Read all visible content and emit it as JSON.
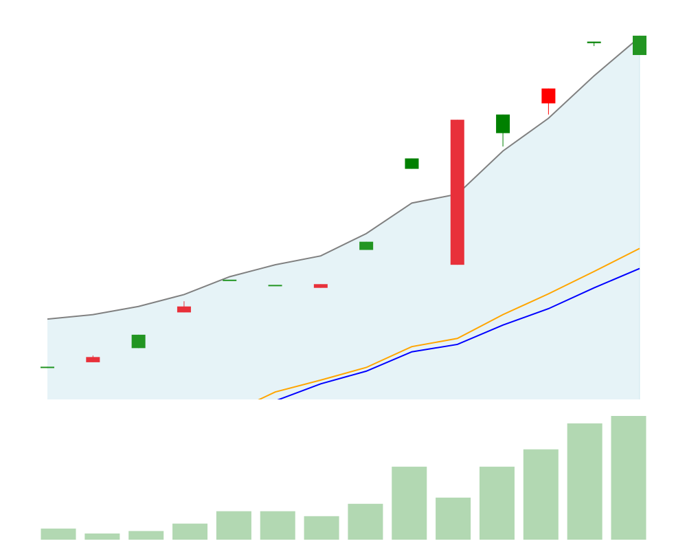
{
  "chart_data": {
    "type": "candlestick",
    "title": "",
    "xlabel": "",
    "ylabel": "",
    "price_ylim": [
      0,
      100
    ],
    "volume_ylim": [
      0,
      100
    ],
    "grid": false,
    "legend": "none",
    "candles": [
      {
        "open": 8.6,
        "high": 8.8,
        "low": 8.4,
        "close": 8.8
      },
      {
        "open": 11.4,
        "high": 11.8,
        "low": 10.0,
        "close": 10.0
      },
      {
        "open": 13.8,
        "high": 17.4,
        "low": 13.8,
        "close": 17.4
      },
      {
        "open": 25.0,
        "high": 26.4,
        "low": 23.4,
        "close": 23.4
      },
      {
        "open": 32.2,
        "high": 32.2,
        "low": 32.2,
        "close": 32.2
      },
      {
        "open": 30.8,
        "high": 30.8,
        "low": 30.8,
        "close": 30.8
      },
      {
        "open": 31.0,
        "high": 31.0,
        "low": 30.0,
        "close": 30.0
      },
      {
        "open": 40.2,
        "high": 42.4,
        "low": 40.2,
        "close": 42.4
      },
      {
        "open": 62.0,
        "high": 64.8,
        "low": 62.0,
        "close": 64.8
      },
      {
        "open": 75.2,
        "high": 75.2,
        "low": 36.2,
        "close": 36.2
      },
      {
        "open": 71.6,
        "high": 76.6,
        "low": 68.0,
        "close": 76.6
      },
      {
        "open": 83.6,
        "high": 83.6,
        "low": 76.6,
        "close": 79.6
      },
      {
        "open": 95.8,
        "high": 96.2,
        "low": 95.0,
        "close": 96.2
      },
      {
        "open": 92.6,
        "high": 97.8,
        "low": 92.6,
        "close": 97.8
      }
    ],
    "overlays": {
      "upper_band": [
        21.6,
        22.8,
        25.0,
        28.2,
        33.0,
        36.2,
        38.6,
        44.6,
        52.8,
        55.2,
        66.8,
        75.6,
        87.0,
        97.4
      ],
      "orange_line": [
        -21.4,
        -19.0,
        -14.2,
        -9.2,
        -3.8,
        2.0,
        5.2,
        8.6,
        14.2,
        16.4,
        22.8,
        28.4,
        34.4,
        40.6
      ],
      "blue_line": [
        -24.6,
        -21.6,
        -17.6,
        -12.6,
        -7.4,
        -0.4,
        4.2,
        7.6,
        12.8,
        14.8,
        20.0,
        24.4,
        30.0,
        35.2
      ]
    },
    "volume": [
      9,
      5,
      7,
      13,
      23,
      23,
      19,
      29,
      59,
      34,
      59,
      73,
      94,
      100
    ]
  },
  "colors": {
    "up": "#008000",
    "down": "#ff0000",
    "up_faded": "#229522",
    "down_faded": "#e8303a",
    "band_fill": "#add8e6",
    "band_line": "#808080",
    "orange": "#ffa500",
    "blue": "#0000ff",
    "volume": "#b2d8b2"
  }
}
